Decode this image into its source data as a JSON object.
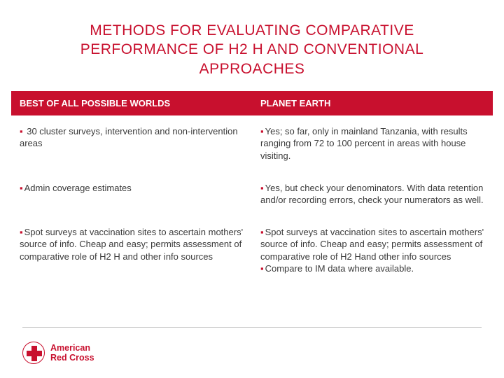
{
  "title": "METHODS FOR EVALUATING COMPARATIVE PERFORMANCE OF H2 H AND CONVENTIONAL APPROACHES",
  "table": {
    "header_bg": "#c8102e",
    "header_color": "#ffffff",
    "body_color": "#3a3a3a",
    "bullet_color": "#c8102e",
    "columns": [
      "BEST OF ALL POSSIBLE WORLDS",
      "PLANET EARTH"
    ],
    "rows": [
      {
        "left": "30 cluster surveys, intervention and non-intervention areas",
        "right": "Yes; so far, only in mainland Tanzania, with results ranging from 72 to 100 percent in areas with house visiting."
      },
      {
        "left": "Admin coverage estimates",
        "right": "Yes, but check your denominators. With data retention and/or recording errors, check your numerators as well."
      },
      {
        "left": "Spot surveys at vaccination sites to ascertain mothers' source of info. Cheap and easy; permits assessment of comparative role of H2 H and other info sources",
        "right_a": "Spot surveys at vaccination sites to ascertain mothers' source of info. Cheap and easy; permits assessment of comparative role of H2 Hand other info sources",
        "right_b": "Compare to IM data where available."
      }
    ]
  },
  "footer": {
    "org_line1": "American",
    "org_line2": "Red Cross"
  },
  "colors": {
    "brand_red": "#c8102e",
    "divider": "#bfbfbf",
    "background": "#ffffff"
  }
}
